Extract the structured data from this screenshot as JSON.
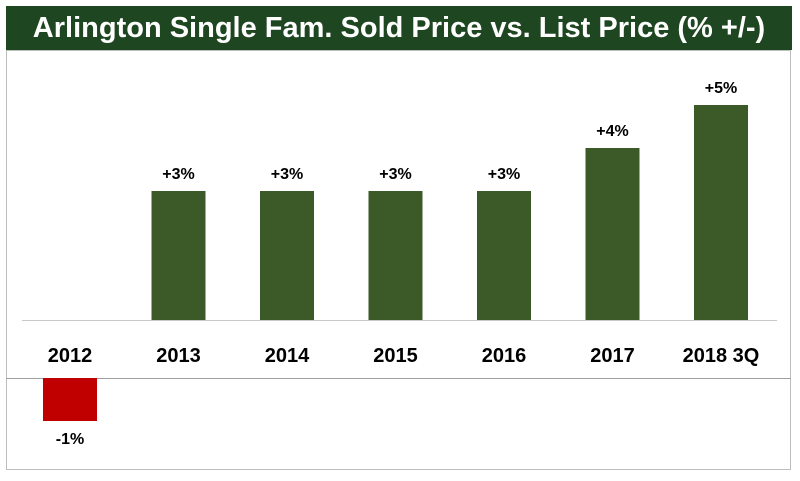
{
  "title": "Arlington Single Fam. Sold Price vs. List Price (% +/-)",
  "colors": {
    "title_bg": "#1e4620",
    "positive_bar": "#3c5a28",
    "negative_bar": "#c00000"
  },
  "chart_data": {
    "type": "bar",
    "title": "Arlington Single Fam. Sold Price vs. List Price (% +/-)",
    "xlabel": "",
    "ylabel": "",
    "categories": [
      "2012",
      "2013",
      "2014",
      "2015",
      "2016",
      "2017",
      "2018 3Q"
    ],
    "values": [
      -1,
      3,
      3,
      3,
      3,
      4,
      5
    ],
    "data_labels": [
      "-1%",
      "+3%",
      "+3%",
      "+3%",
      "+3%",
      "+4%",
      "+5%"
    ],
    "ylim": [
      -1.5,
      5.5
    ],
    "grid": false,
    "legend": "none"
  }
}
